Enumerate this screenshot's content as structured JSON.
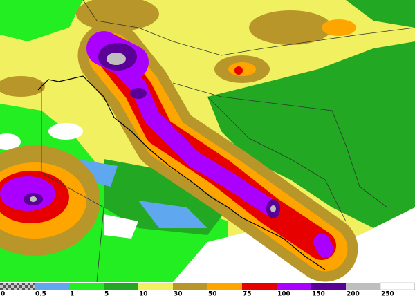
{
  "legend": {
    "ticks": [
      0,
      0.5,
      1,
      5,
      10,
      30,
      50,
      75,
      100,
      150,
      200,
      250
    ]
  }
}
